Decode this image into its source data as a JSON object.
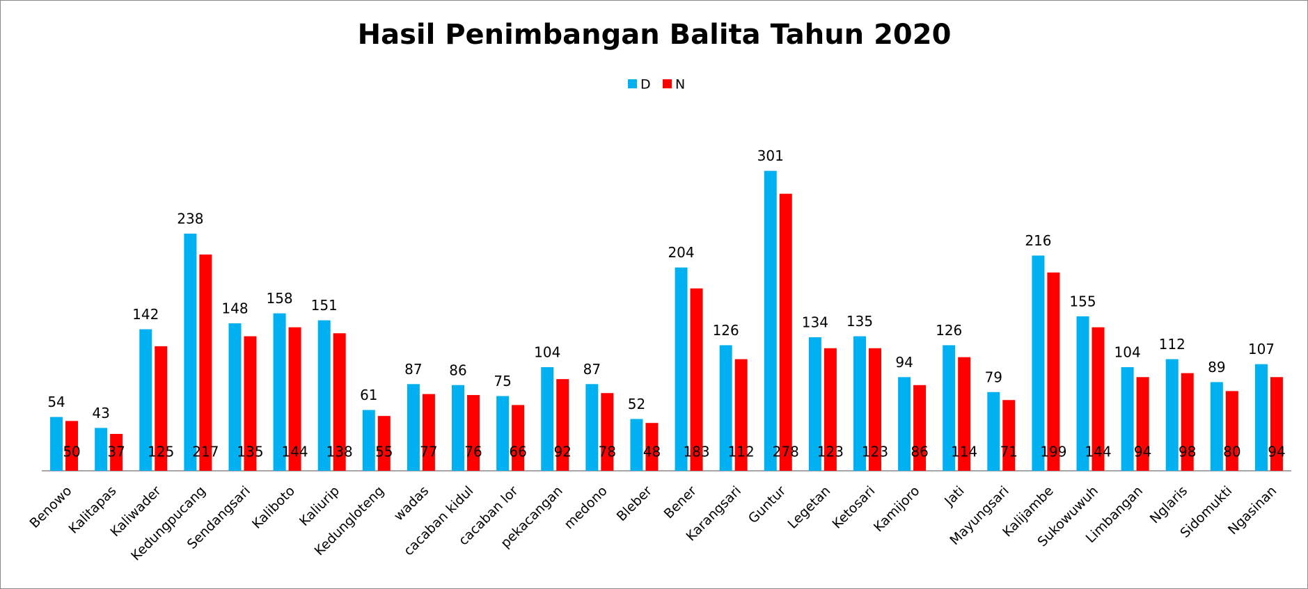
{
  "chart_data": {
    "type": "bar",
    "title": "Hasil Penimbangan Balita Tahun 2020",
    "categories": [
      "Benowo",
      "Kalitapas",
      "Kaliwader",
      "Kedungpucang",
      "Sendangsari",
      "Kaliboto",
      "Kaliurip",
      "Kedungloteng",
      "wadas",
      "cacaban kidul",
      "cacaban lor",
      "pekacangan",
      "medono",
      "Bleber",
      "Bener",
      "Karangsari",
      "Guntur",
      "Legetan",
      "Ketosari",
      "Kamijoro",
      "Jati",
      "Mayungsari",
      "Kalijambe",
      "Sukowuwuh",
      "Limbangan",
      "Nglaris",
      "Sidomukti",
      "Ngasinan"
    ],
    "series": [
      {
        "name": "D",
        "color": "#00b0f0",
        "values": [
          54,
          43,
          142,
          238,
          148,
          158,
          151,
          61,
          87,
          86,
          75,
          104,
          87,
          52,
          204,
          126,
          301,
          134,
          135,
          94,
          126,
          79,
          216,
          155,
          104,
          112,
          89,
          107
        ]
      },
      {
        "name": "N",
        "color": "#ff0000",
        "values": [
          50,
          37,
          125,
          217,
          135,
          144,
          138,
          55,
          77,
          76,
          66,
          92,
          78,
          48,
          183,
          112,
          278,
          123,
          123,
          86,
          114,
          71,
          199,
          144,
          94,
          98,
          80,
          94
        ]
      }
    ],
    "legend": "top"
  }
}
